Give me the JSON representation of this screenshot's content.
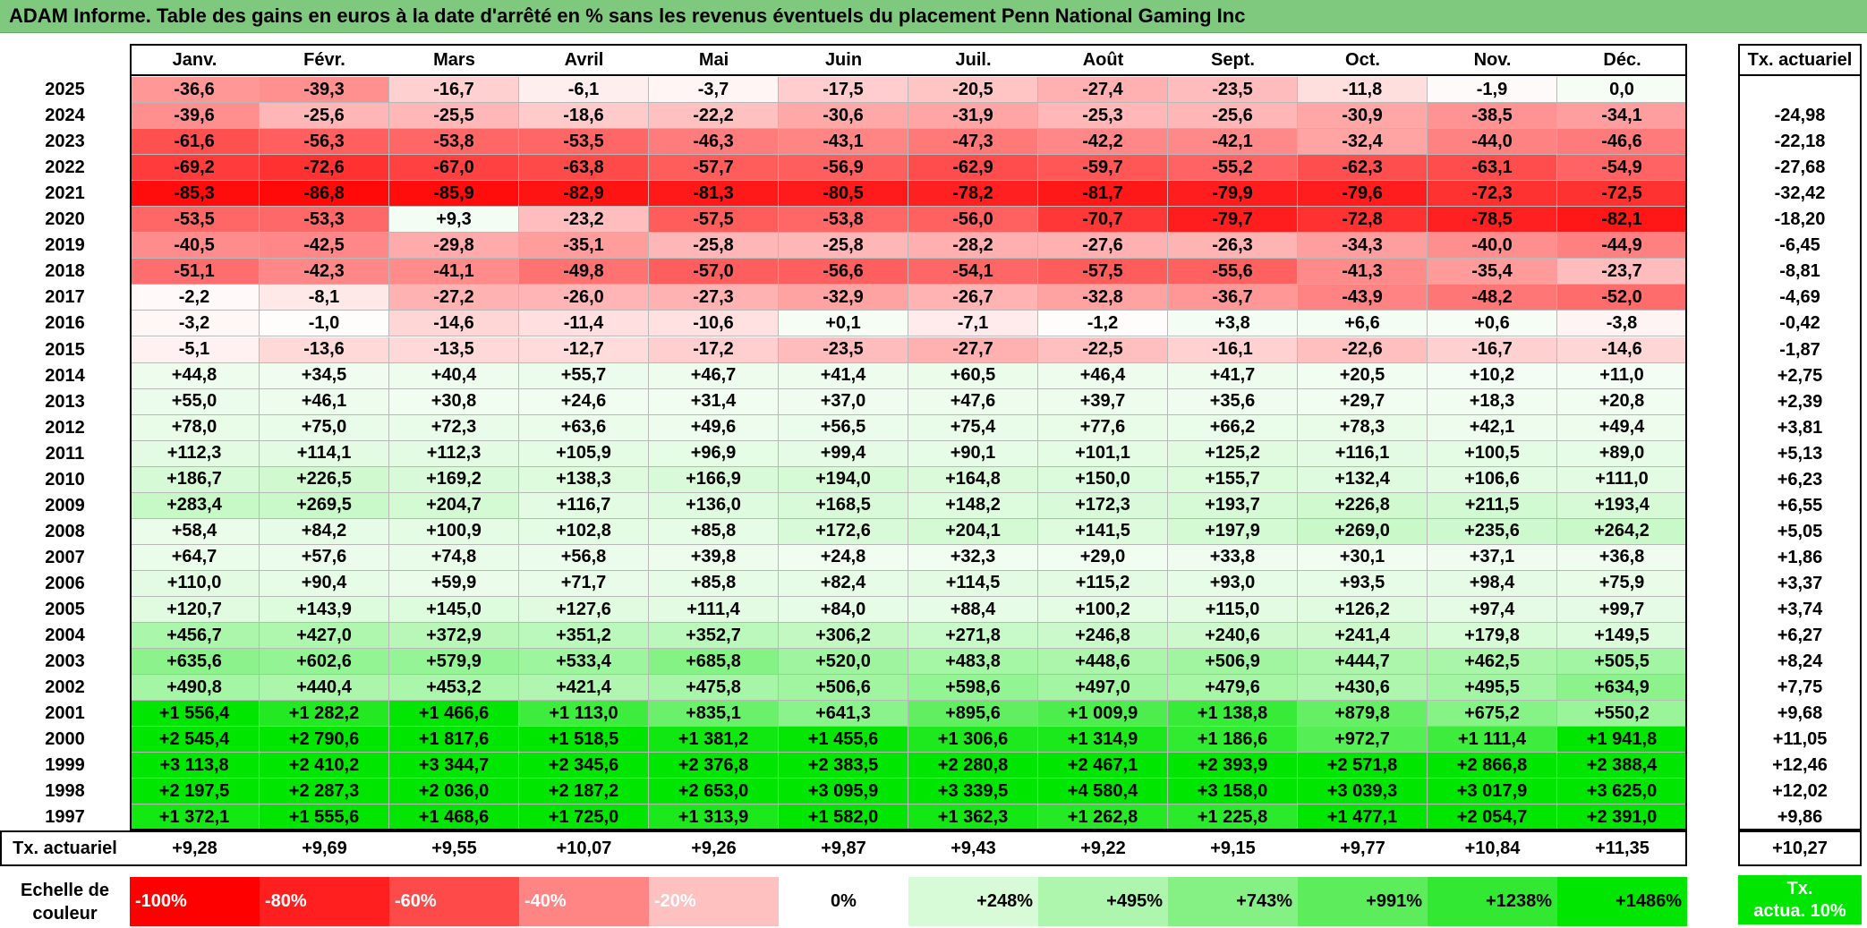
{
  "title": "ADAM Informe. Table des gains en euros à la date d'arrêté en % sans les revenus éventuels du placement Penn National Gaming Inc",
  "months": [
    "Janv.",
    "Févr.",
    "Mars",
    "Avril",
    "Mai",
    "Juin",
    "Juil.",
    "Août",
    "Sept.",
    "Oct.",
    "Nov.",
    "Déc."
  ],
  "rate_header": "Tx. actuariel",
  "rows": [
    {
      "year": "2025",
      "cells": [
        "-36,6",
        "-39,3",
        "-16,7",
        "-6,1",
        "-3,7",
        "-17,5",
        "-20,5",
        "-27,4",
        "-23,5",
        "-11,8",
        "-1,9",
        "0,0"
      ],
      "rate": ""
    },
    {
      "year": "2024",
      "cells": [
        "-39,6",
        "-25,6",
        "-25,5",
        "-18,6",
        "-22,2",
        "-30,6",
        "-31,9",
        "-25,3",
        "-25,6",
        "-30,9",
        "-38,5",
        "-34,1"
      ],
      "rate": "-24,98"
    },
    {
      "year": "2023",
      "cells": [
        "-61,6",
        "-56,3",
        "-53,8",
        "-53,5",
        "-46,3",
        "-43,1",
        "-47,3",
        "-42,2",
        "-42,1",
        "-32,4",
        "-44,0",
        "-46,6"
      ],
      "rate": "-22,18"
    },
    {
      "year": "2022",
      "cells": [
        "-69,2",
        "-72,6",
        "-67,0",
        "-63,8",
        "-57,7",
        "-56,9",
        "-62,9",
        "-59,7",
        "-55,2",
        "-62,3",
        "-63,1",
        "-54,9"
      ],
      "rate": "-27,68"
    },
    {
      "year": "2021",
      "cells": [
        "-85,3",
        "-86,8",
        "-85,9",
        "-82,9",
        "-81,3",
        "-80,5",
        "-78,2",
        "-81,7",
        "-79,9",
        "-79,6",
        "-72,3",
        "-72,5"
      ],
      "rate": "-32,42"
    },
    {
      "year": "2020",
      "cells": [
        "-53,5",
        "-53,3",
        "+9,3",
        "-23,2",
        "-57,5",
        "-53,8",
        "-56,0",
        "-70,7",
        "-79,7",
        "-72,8",
        "-78,5",
        "-82,1"
      ],
      "rate": "-18,20"
    },
    {
      "year": "2019",
      "cells": [
        "-40,5",
        "-42,5",
        "-29,8",
        "-35,1",
        "-25,8",
        "-25,8",
        "-28,2",
        "-27,6",
        "-26,3",
        "-34,3",
        "-40,0",
        "-44,9"
      ],
      "rate": "-6,45"
    },
    {
      "year": "2018",
      "cells": [
        "-51,1",
        "-42,3",
        "-41,1",
        "-49,8",
        "-57,0",
        "-56,6",
        "-54,1",
        "-57,5",
        "-55,6",
        "-41,3",
        "-35,4",
        "-23,7"
      ],
      "rate": "-8,81"
    },
    {
      "year": "2017",
      "cells": [
        "-2,2",
        "-8,1",
        "-27,2",
        "-26,0",
        "-27,3",
        "-32,9",
        "-26,7",
        "-32,8",
        "-36,7",
        "-43,9",
        "-48,2",
        "-52,0"
      ],
      "rate": "-4,69"
    },
    {
      "year": "2016",
      "cells": [
        "-3,2",
        "-1,0",
        "-14,6",
        "-11,4",
        "-10,6",
        "+0,1",
        "-7,1",
        "-1,2",
        "+3,8",
        "+6,6",
        "+0,6",
        "-3,8"
      ],
      "rate": "-0,42"
    },
    {
      "year": "2015",
      "cells": [
        "-5,1",
        "-13,6",
        "-13,5",
        "-12,7",
        "-17,2",
        "-23,5",
        "-27,7",
        "-22,5",
        "-16,1",
        "-22,6",
        "-16,7",
        "-14,6"
      ],
      "rate": "-1,87"
    },
    {
      "year": "2014",
      "cells": [
        "+44,8",
        "+34,5",
        "+40,4",
        "+55,7",
        "+46,7",
        "+41,4",
        "+60,5",
        "+46,4",
        "+41,7",
        "+20,5",
        "+10,2",
        "+11,0"
      ],
      "rate": "+2,75"
    },
    {
      "year": "2013",
      "cells": [
        "+55,0",
        "+46,1",
        "+30,8",
        "+24,6",
        "+31,4",
        "+37,0",
        "+47,6",
        "+39,7",
        "+35,6",
        "+29,7",
        "+18,3",
        "+20,8"
      ],
      "rate": "+2,39"
    },
    {
      "year": "2012",
      "cells": [
        "+78,0",
        "+75,0",
        "+72,3",
        "+63,6",
        "+49,6",
        "+56,5",
        "+75,4",
        "+77,6",
        "+66,2",
        "+78,3",
        "+42,1",
        "+49,4"
      ],
      "rate": "+3,81"
    },
    {
      "year": "2011",
      "cells": [
        "+112,3",
        "+114,1",
        "+112,3",
        "+105,9",
        "+96,9",
        "+99,4",
        "+90,1",
        "+101,1",
        "+125,2",
        "+116,1",
        "+100,5",
        "+89,0"
      ],
      "rate": "+5,13"
    },
    {
      "year": "2010",
      "cells": [
        "+186,7",
        "+226,5",
        "+169,2",
        "+138,3",
        "+166,9",
        "+194,0",
        "+164,8",
        "+150,0",
        "+155,7",
        "+132,4",
        "+106,6",
        "+111,0"
      ],
      "rate": "+6,23"
    },
    {
      "year": "2009",
      "cells": [
        "+283,4",
        "+269,5",
        "+204,7",
        "+116,7",
        "+136,0",
        "+168,5",
        "+148,2",
        "+172,3",
        "+193,7",
        "+226,8",
        "+211,5",
        "+193,4"
      ],
      "rate": "+6,55"
    },
    {
      "year": "2008",
      "cells": [
        "+58,4",
        "+84,2",
        "+100,9",
        "+102,8",
        "+85,8",
        "+172,6",
        "+204,1",
        "+141,5",
        "+197,9",
        "+269,0",
        "+235,6",
        "+264,2"
      ],
      "rate": "+5,05"
    },
    {
      "year": "2007",
      "cells": [
        "+64,7",
        "+57,6",
        "+74,8",
        "+56,8",
        "+39,8",
        "+24,8",
        "+32,3",
        "+29,0",
        "+33,8",
        "+30,1",
        "+37,1",
        "+36,8"
      ],
      "rate": "+1,86"
    },
    {
      "year": "2006",
      "cells": [
        "+110,0",
        "+90,4",
        "+59,9",
        "+71,7",
        "+85,8",
        "+82,4",
        "+114,5",
        "+115,2",
        "+93,0",
        "+93,5",
        "+98,4",
        "+75,9"
      ],
      "rate": "+3,37"
    },
    {
      "year": "2005",
      "cells": [
        "+120,7",
        "+143,9",
        "+145,0",
        "+127,6",
        "+111,4",
        "+84,0",
        "+88,4",
        "+100,2",
        "+115,0",
        "+126,2",
        "+97,4",
        "+99,7"
      ],
      "rate": "+3,74"
    },
    {
      "year": "2004",
      "cells": [
        "+456,7",
        "+427,0",
        "+372,9",
        "+351,2",
        "+352,7",
        "+306,2",
        "+271,8",
        "+246,8",
        "+240,6",
        "+241,4",
        "+179,8",
        "+149,5"
      ],
      "rate": "+6,27"
    },
    {
      "year": "2003",
      "cells": [
        "+635,6",
        "+602,6",
        "+579,9",
        "+533,4",
        "+685,8",
        "+520,0",
        "+483,8",
        "+448,6",
        "+506,9",
        "+444,7",
        "+462,5",
        "+505,5"
      ],
      "rate": "+8,24"
    },
    {
      "year": "2002",
      "cells": [
        "+490,8",
        "+440,4",
        "+453,2",
        "+421,4",
        "+475,8",
        "+506,6",
        "+598,6",
        "+497,0",
        "+479,6",
        "+430,6",
        "+495,5",
        "+634,9"
      ],
      "rate": "+7,75"
    },
    {
      "year": "2001",
      "cells": [
        "+1 556,4",
        "+1 282,2",
        "+1 466,6",
        "+1 113,0",
        "+835,1",
        "+641,3",
        "+895,6",
        "+1 009,9",
        "+1 138,8",
        "+879,8",
        "+675,2",
        "+550,2"
      ],
      "rate": "+9,68"
    },
    {
      "year": "2000",
      "cells": [
        "+2 545,4",
        "+2 790,6",
        "+1 817,6",
        "+1 518,5",
        "+1 381,2",
        "+1 455,6",
        "+1 306,6",
        "+1 314,9",
        "+1 186,6",
        "+972,7",
        "+1 111,4",
        "+1 941,8"
      ],
      "rate": "+11,05"
    },
    {
      "year": "1999",
      "cells": [
        "+3 113,8",
        "+2 410,2",
        "+3 344,7",
        "+2 345,6",
        "+2 376,8",
        "+2 383,5",
        "+2 280,8",
        "+2 467,1",
        "+2 393,9",
        "+2 571,8",
        "+2 866,8",
        "+2 388,4"
      ],
      "rate": "+12,46"
    },
    {
      "year": "1998",
      "cells": [
        "+2 197,5",
        "+2 287,3",
        "+2 036,0",
        "+2 187,2",
        "+2 653,0",
        "+3 095,9",
        "+3 339,5",
        "+4 580,4",
        "+3 158,0",
        "+3 039,3",
        "+3 017,9",
        "+3 625,0"
      ],
      "rate": "+12,02"
    },
    {
      "year": "1997",
      "cells": [
        "+1 372,1",
        "+1 555,6",
        "+1 468,6",
        "+1 725,0",
        "+1 313,9",
        "+1 582,0",
        "+1 362,3",
        "+1 262,8",
        "+1 225,8",
        "+1 477,1",
        "+2 054,7",
        "+2 391,0"
      ],
      "rate": "+9,86"
    }
  ],
  "footer": {
    "label": "Tx. actuariel",
    "cells": [
      "+9,28",
      "+9,69",
      "+9,55",
      "+10,07",
      "+9,26",
      "+9,87",
      "+9,43",
      "+9,22",
      "+9,15",
      "+9,77",
      "+10,84",
      "+11,35"
    ],
    "rate": "+10,27"
  },
  "legend": {
    "label_line1": "Echelle de",
    "label_line2": "couleur",
    "items": [
      {
        "text": "-100%",
        "color": "#ff0000"
      },
      {
        "text": "-80%",
        "color": "#ff1f1f"
      },
      {
        "text": "-60%",
        "color": "#ff4a4a"
      },
      {
        "text": "-40%",
        "color": "#ff8484"
      },
      {
        "text": "-20%",
        "color": "#ffc0c0"
      },
      {
        "text": "0%",
        "color": "#ffffff"
      },
      {
        "text": "+248%",
        "color": "#d7fbd7"
      },
      {
        "text": "+495%",
        "color": "#aef6ae"
      },
      {
        "text": "+743%",
        "color": "#85f185"
      },
      {
        "text": "+991%",
        "color": "#5cec5c"
      },
      {
        "text": "+1238%",
        "color": "#33e833"
      },
      {
        "text": "+1486%",
        "color": "#00e600"
      }
    ],
    "rate_line1": "Tx.",
    "rate_line2": "actua. 10%",
    "rate_color": "#00e600"
  }
}
